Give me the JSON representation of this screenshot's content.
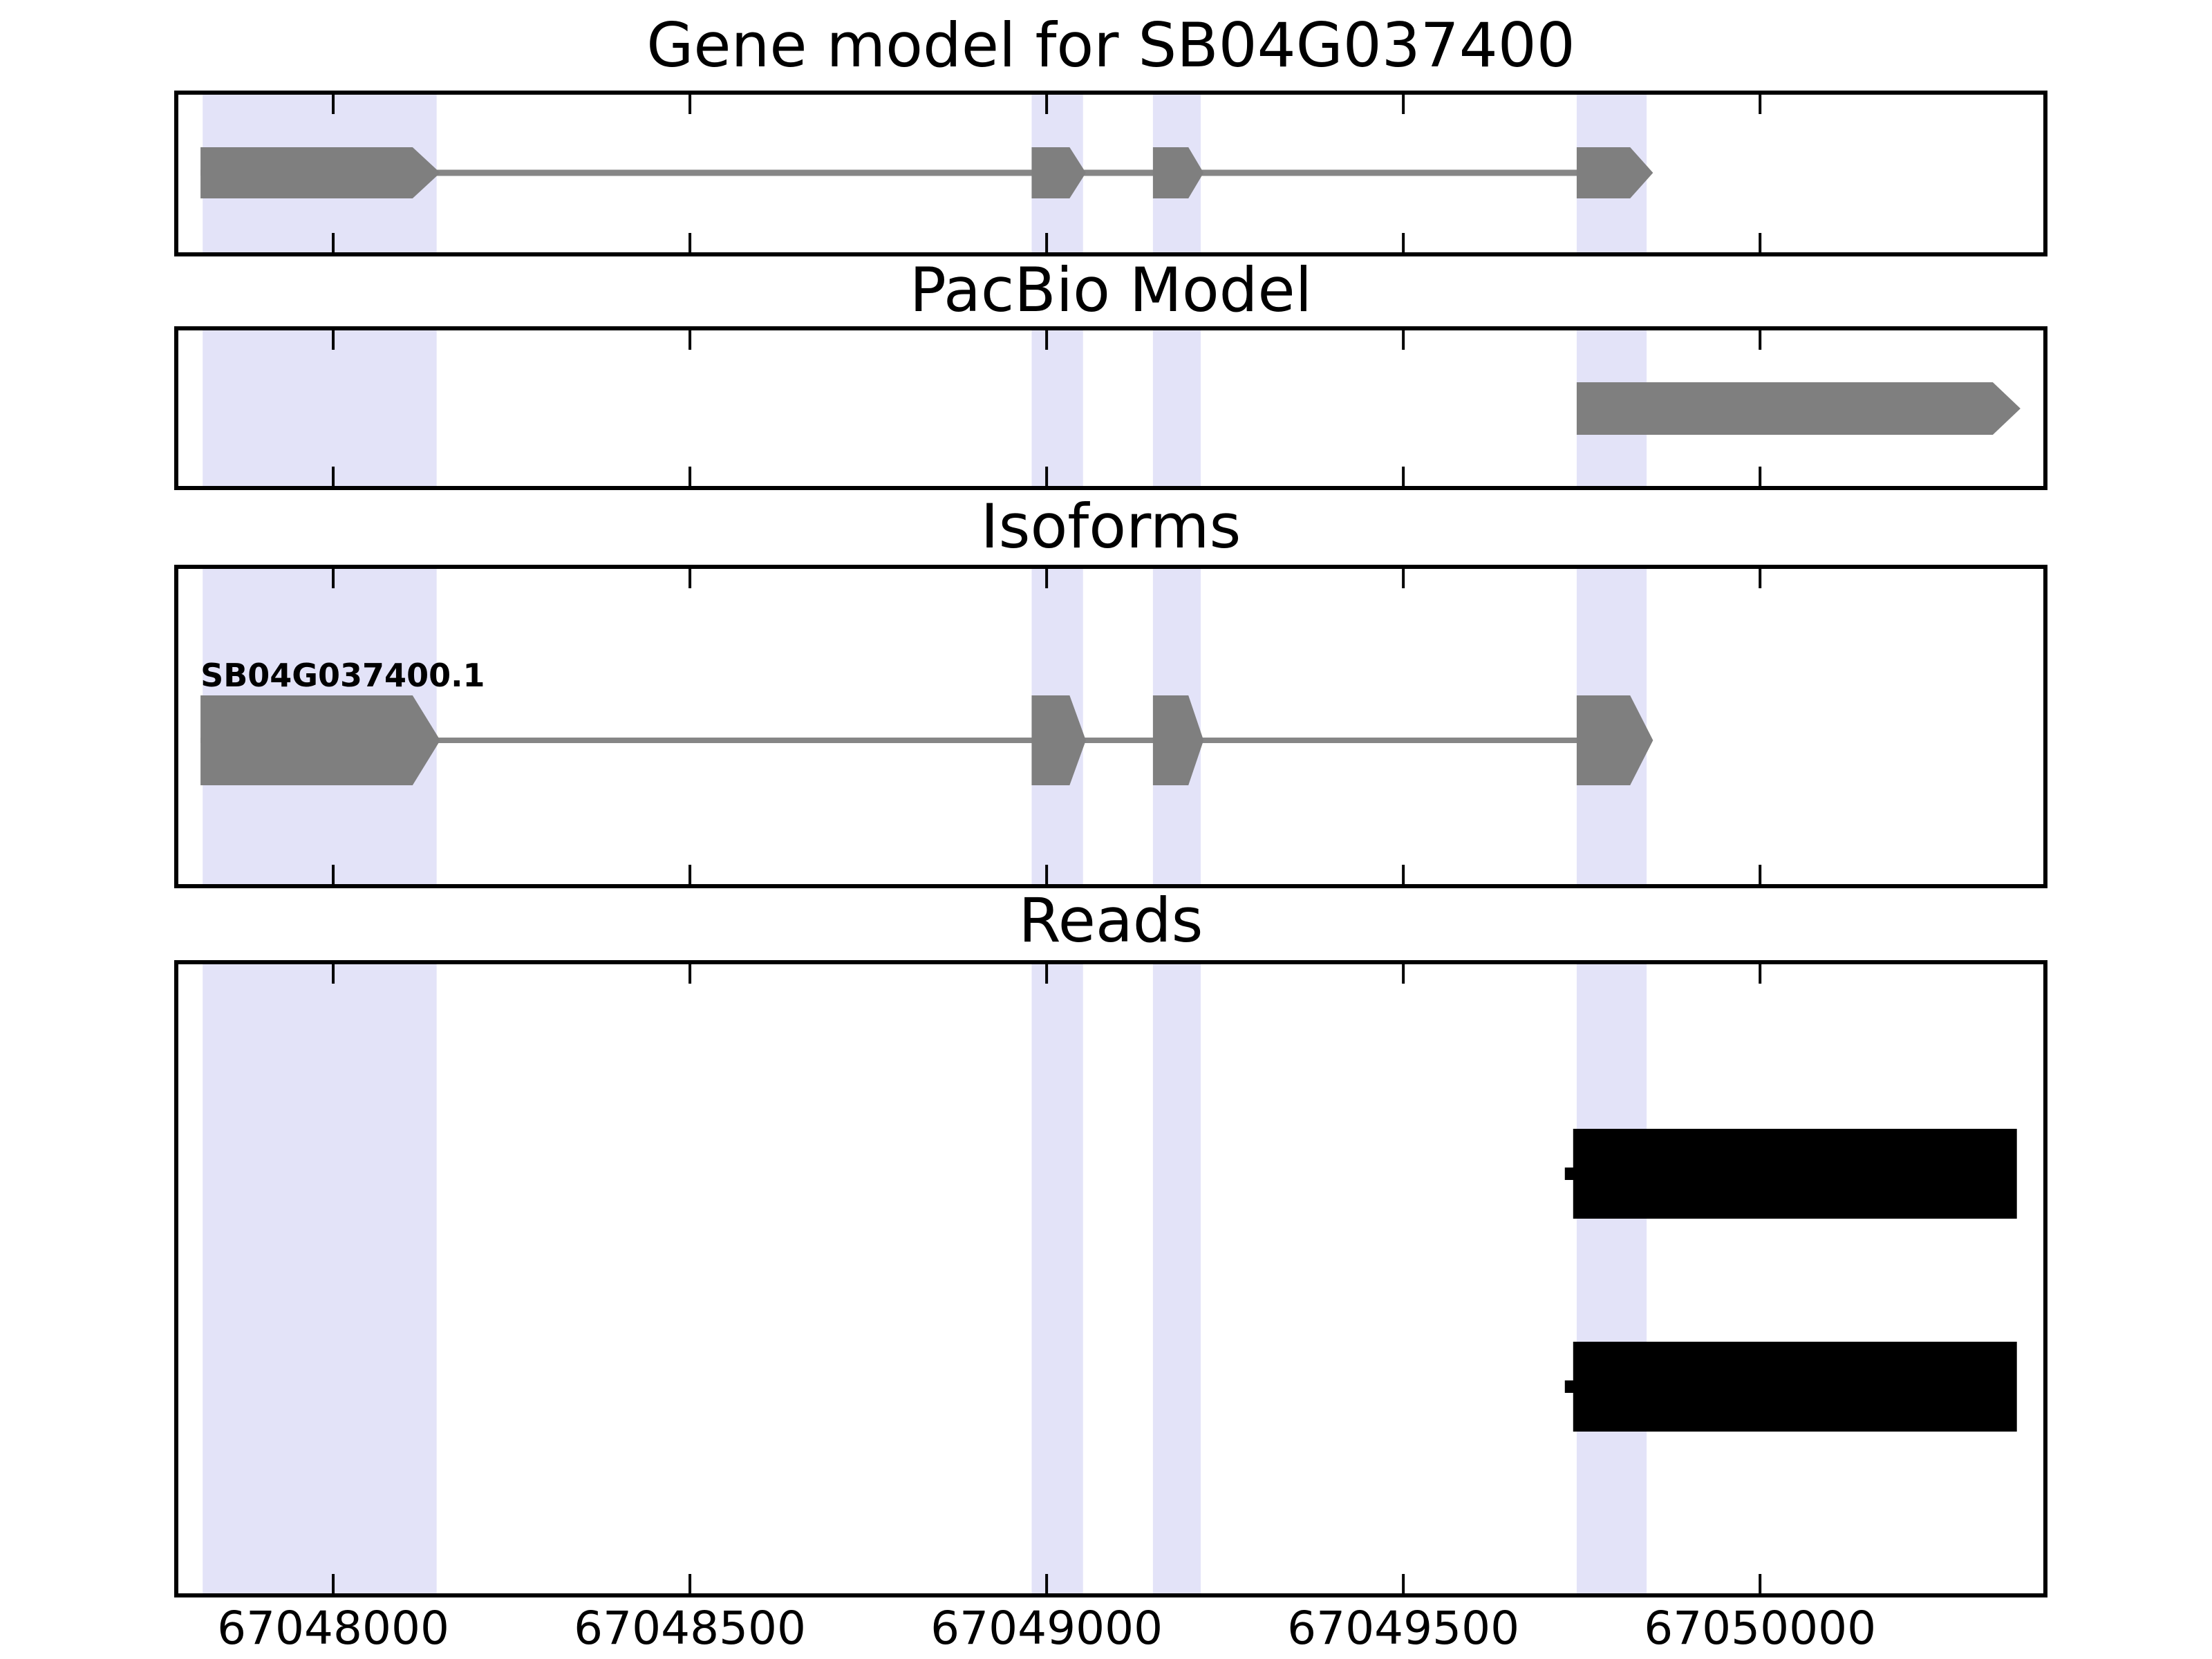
{
  "figure_title": "Gene model for SB04G037400",
  "colors": {
    "background": "#ffffff",
    "frame": "#000000",
    "text": "#000000",
    "exon_fill": "#7f7f7f",
    "intron_line": "#868686",
    "read_fill": "#000000",
    "highlight_fill": "#e3e3f8"
  },
  "chart_data": {
    "type": "gene-model-tracks",
    "title": "Gene model for SB04G037400",
    "x_axis": {
      "domain": [
        67047780,
        67050400
      ],
      "ticks": [
        67048000,
        67048500,
        67049000,
        67049500,
        67050000
      ],
      "tick_labels": [
        "67048000",
        "67048500",
        "67049000",
        "67049500",
        "67050000"
      ],
      "grid": false,
      "tick_style": "inner-top-and-bottom"
    },
    "highlight_regions": [
      [
        67047817,
        67048145
      ],
      [
        67048979,
        67049051
      ],
      [
        67049149,
        67049216
      ],
      [
        67049743,
        67049841
      ]
    ],
    "tracks": [
      {
        "title": "Gene model for SB04G037400",
        "type": "gene",
        "features": [
          {
            "name": "SB04G037400",
            "strand": "+",
            "exons": [
              [
                67047814,
                67048150
              ],
              [
                67048979,
                67049055
              ],
              [
                67049149,
                67049220
              ],
              [
                67049743,
                67049850
              ]
            ]
          }
        ]
      },
      {
        "title": "PacBio Model",
        "type": "transcript",
        "features": [
          {
            "name": "pacbio-model",
            "strand": "+",
            "exons": [
              [
                67049743,
                67050365
              ]
            ]
          }
        ]
      },
      {
        "title": "Isoforms",
        "type": "transcript",
        "features": [
          {
            "name": "SB04G037400.1",
            "label": "SB04G037400.1",
            "strand": "+",
            "exons": [
              [
                67047814,
                67048150
              ],
              [
                67048979,
                67049055
              ],
              [
                67049149,
                67049220
              ],
              [
                67049743,
                67049850
              ]
            ]
          }
        ]
      },
      {
        "title": "Reads",
        "type": "reads",
        "features": [
          {
            "name": "read-1",
            "span": [
              67049738,
              67050360
            ]
          },
          {
            "name": "read-2",
            "span": [
              67049738,
              67050360
            ]
          }
        ]
      }
    ]
  }
}
